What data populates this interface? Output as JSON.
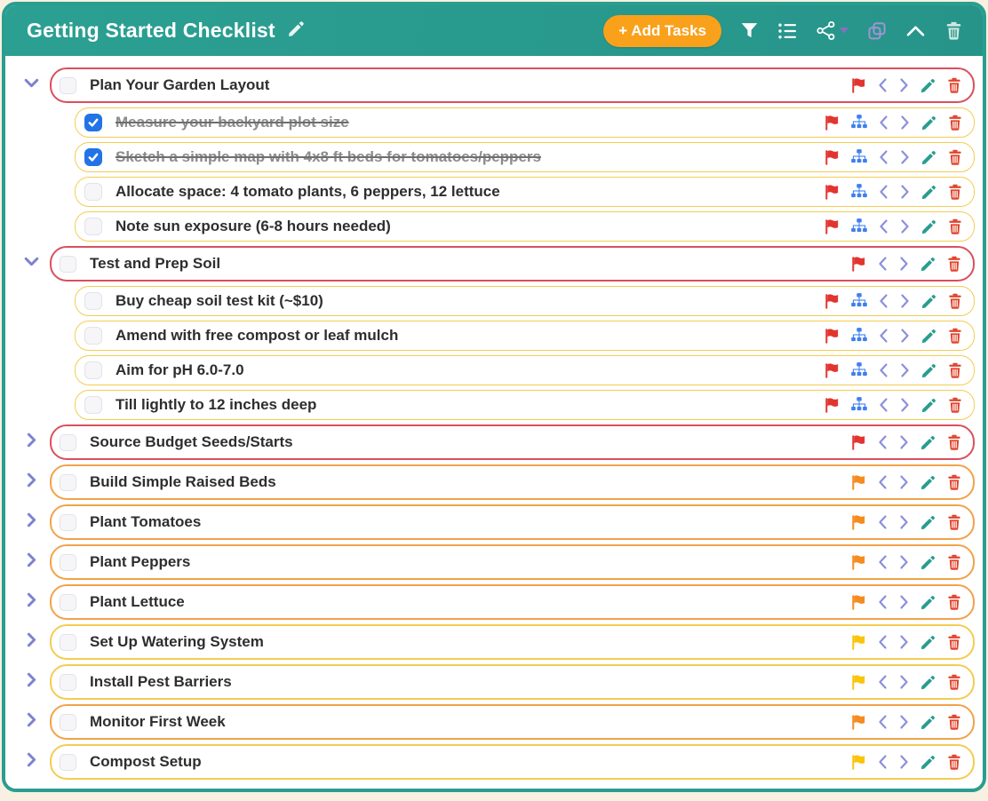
{
  "header": {
    "title": "Getting Started Checklist",
    "add_tasks_label": "+ Add Tasks",
    "icons": [
      "pencil-icon",
      "filter-icon",
      "list-icon",
      "share-icon",
      "caret-down-icon",
      "copy-icon",
      "chevron-up-icon",
      "trash-icon"
    ]
  },
  "colors": {
    "page_bg": "#f8f1e2",
    "teal": "#2a9d8f",
    "orange_button": "#f9a11b",
    "header_trash": "#cfe7e1",
    "caret_purple": "#8d6fc0",
    "copy_purple": "#a294d4",
    "border_red": "#d9505c",
    "border_orange": "#f2a24a",
    "border_yellow": "#f4cc52",
    "flag_red": "#e23530",
    "flag_orange": "#f68b1f",
    "flag_yellow": "#fbc40d",
    "chevron_purple": "#8b90d8",
    "expander_purple": "#7d82ce",
    "sitemap_blue": "#3d7ff0",
    "pencil_teal": "#2a9d8f",
    "trash_red": "#e0452c",
    "checkbox_blue": "#2273e5",
    "text": "#2e2e30",
    "completed_text": "#8b8b8b"
  },
  "tasks": [
    {
      "label": "Plan Your Garden Layout",
      "level": 0,
      "expand": "down",
      "border": "red",
      "flag": "red",
      "checked": false,
      "completed": false
    },
    {
      "label": "Measure your backyard plot size",
      "level": 1,
      "border": "yellow",
      "flag": "red",
      "checked": true,
      "completed": true
    },
    {
      "label": "Sketch a simple map with 4x8 ft beds for tomatoes/peppers",
      "level": 1,
      "border": "yellow",
      "flag": "red",
      "checked": true,
      "completed": true
    },
    {
      "label": "Allocate space: 4 tomato plants, 6 peppers, 12 lettuce",
      "level": 1,
      "border": "yellow",
      "flag": "red",
      "checked": false,
      "completed": false
    },
    {
      "label": "Note sun exposure (6-8 hours needed)",
      "level": 1,
      "border": "yellow",
      "flag": "red",
      "checked": false,
      "completed": false
    },
    {
      "label": "Test and Prep Soil",
      "level": 0,
      "expand": "down",
      "border": "red",
      "flag": "red",
      "checked": false,
      "completed": false
    },
    {
      "label": "Buy cheap soil test kit (~$10)",
      "level": 1,
      "border": "yellow",
      "flag": "red",
      "checked": false,
      "completed": false
    },
    {
      "label": "Amend with free compost or leaf mulch",
      "level": 1,
      "border": "yellow",
      "flag": "red",
      "checked": false,
      "completed": false
    },
    {
      "label": "Aim for pH 6.0-7.0",
      "level": 1,
      "border": "yellow",
      "flag": "red",
      "checked": false,
      "completed": false
    },
    {
      "label": "Till lightly to 12 inches deep",
      "level": 1,
      "border": "yellow",
      "flag": "red",
      "checked": false,
      "completed": false
    },
    {
      "label": "Source Budget Seeds/Starts",
      "level": 0,
      "expand": "right",
      "border": "red",
      "flag": "red",
      "checked": false,
      "completed": false
    },
    {
      "label": "Build Simple Raised Beds",
      "level": 0,
      "expand": "right",
      "border": "orange",
      "flag": "orange",
      "checked": false,
      "completed": false
    },
    {
      "label": "Plant Tomatoes",
      "level": 0,
      "expand": "right",
      "border": "orange",
      "flag": "orange",
      "checked": false,
      "completed": false
    },
    {
      "label": "Plant Peppers",
      "level": 0,
      "expand": "right",
      "border": "orange",
      "flag": "orange",
      "checked": false,
      "completed": false
    },
    {
      "label": "Plant Lettuce",
      "level": 0,
      "expand": "right",
      "border": "orange",
      "flag": "orange",
      "checked": false,
      "completed": false
    },
    {
      "label": "Set Up Watering System",
      "level": 0,
      "expand": "right",
      "border": "yellow",
      "flag": "yellow",
      "checked": false,
      "completed": false
    },
    {
      "label": "Install Pest Barriers",
      "level": 0,
      "expand": "right",
      "border": "yellow",
      "flag": "yellow",
      "checked": false,
      "completed": false
    },
    {
      "label": "Monitor First Week",
      "level": 0,
      "expand": "right",
      "border": "orange",
      "flag": "orange",
      "checked": false,
      "completed": false
    },
    {
      "label": "Compost Setup",
      "level": 0,
      "expand": "right",
      "border": "yellow",
      "flag": "yellow",
      "checked": false,
      "completed": false
    }
  ]
}
